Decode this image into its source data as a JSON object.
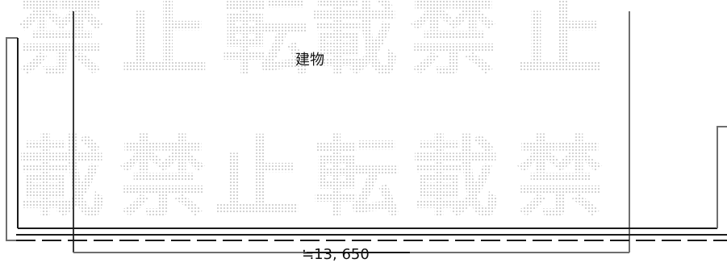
{
  "building": {
    "label": "建物"
  },
  "dimension": {
    "label": "≒13, 650"
  },
  "watermark": {
    "row1": [
      "禁",
      "止",
      "転",
      "載",
      "禁",
      "止"
    ],
    "row2": [
      "載",
      "禁",
      "止",
      "転",
      "載",
      "禁"
    ]
  },
  "colors": {
    "line_dark": "#1a1a1a",
    "line_gray": "#6e6e6e",
    "watermark": "#b5b5b5",
    "background": "#ffffff"
  }
}
